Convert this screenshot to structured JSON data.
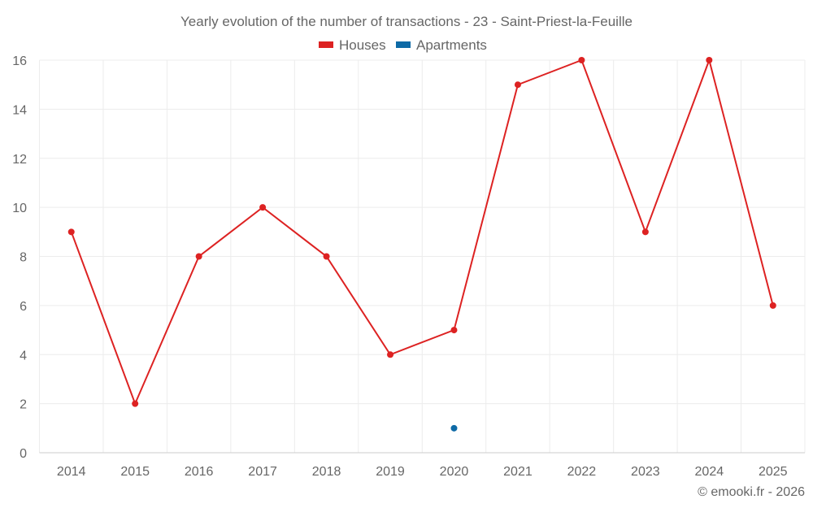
{
  "chart_data": {
    "type": "line",
    "title": "Yearly evolution of the number of transactions - 23 - Saint-Priest-la-Feuille",
    "categories": [
      "2014",
      "2015",
      "2016",
      "2017",
      "2018",
      "2019",
      "2020",
      "2021",
      "2022",
      "2023",
      "2024",
      "2025"
    ],
    "series": [
      {
        "name": "Houses",
        "color": "#dd2222",
        "values": [
          9,
          2,
          8,
          10,
          8,
          4,
          5,
          15,
          16,
          9,
          16,
          6
        ]
      },
      {
        "name": "Apartments",
        "color": "#0e6aa6",
        "values": [
          null,
          null,
          null,
          null,
          null,
          null,
          1,
          null,
          null,
          null,
          null,
          null
        ]
      }
    ],
    "yticks": [
      "0",
      "2",
      "4",
      "6",
      "8",
      "10",
      "12",
      "14",
      "16"
    ],
    "ylim": [
      0,
      16
    ],
    "xlabel": "",
    "ylabel": "",
    "grid": true,
    "legend": "top-center",
    "credit": "© emooki.fr - 2026"
  }
}
